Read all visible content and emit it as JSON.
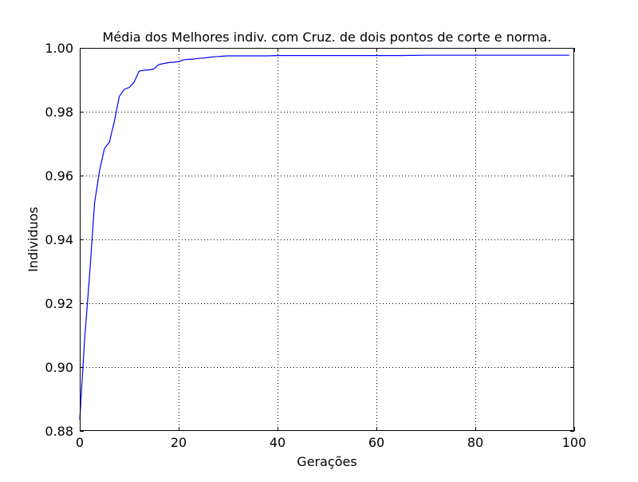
{
  "chart_data": {
    "type": "line",
    "title": "Média dos Melhores indiv. com Cruz. de dois pontos de corte e norma.",
    "xlabel": "Gerações",
    "ylabel": "Individuos",
    "xlim": [
      0,
      100
    ],
    "ylim": [
      0.88,
      1.0
    ],
    "x_ticks": [
      0,
      20,
      40,
      60,
      80,
      100
    ],
    "x_tick_labels": [
      "0",
      "20",
      "40",
      "60",
      "80",
      "100"
    ],
    "y_ticks": [
      0.88,
      0.9,
      0.92,
      0.94,
      0.96,
      0.98,
      1.0
    ],
    "y_tick_labels": [
      "0.88",
      "0.90",
      "0.92",
      "0.94",
      "0.96",
      "0.98",
      "1.00"
    ],
    "grid": true,
    "legend": "none",
    "line_color": "#0000ff",
    "series": [
      {
        "x": [
          0,
          1,
          2,
          3,
          4,
          5,
          6,
          7,
          8,
          9,
          10,
          11,
          12,
          13,
          14,
          15,
          16,
          17,
          18,
          19,
          20,
          21,
          22,
          23,
          24,
          25,
          26,
          27,
          28,
          29,
          30,
          32,
          35,
          38,
          40,
          45,
          50,
          55,
          60,
          65,
          70,
          75,
          80,
          85,
          90,
          95,
          99
        ],
        "values": [
          0.8835,
          0.909,
          0.929,
          0.9515,
          0.9615,
          0.9685,
          0.9705,
          0.977,
          0.9848,
          0.987,
          0.9876,
          0.9893,
          0.9927,
          0.993,
          0.9931,
          0.9934,
          0.9948,
          0.9951,
          0.9954,
          0.9955,
          0.9957,
          0.9963,
          0.9964,
          0.9965,
          0.9967,
          0.9968,
          0.997,
          0.9972,
          0.9973,
          0.9974,
          0.9975,
          0.9975,
          0.9975,
          0.9975,
          0.9976,
          0.9976,
          0.9976,
          0.9976,
          0.9976,
          0.9976,
          0.9977,
          0.9977,
          0.9977,
          0.9977,
          0.9977,
          0.9977,
          0.9977
        ]
      }
    ]
  }
}
